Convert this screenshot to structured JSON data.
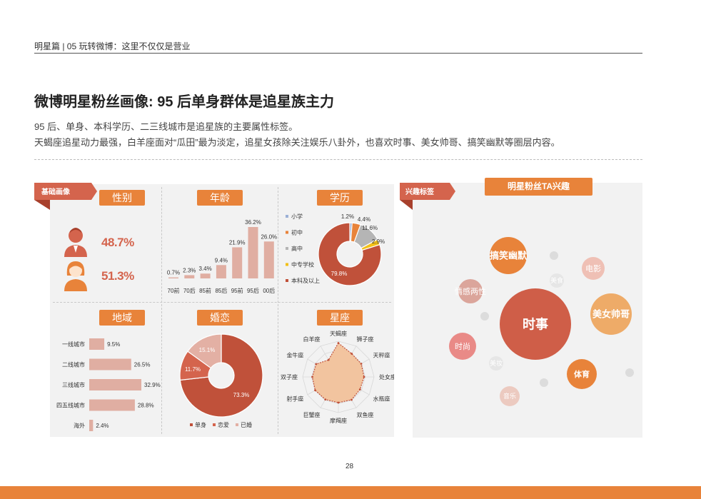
{
  "header": {
    "breadcrumb": "明星篇 | 05  玩转微博：这里不仅仅是营业",
    "title": "微博明星粉丝画像: 95 后单身群体是追星族主力",
    "subtitle_lines": [
      "95 后、单身、本科学历、二三线城市是追星族的主要属性标签。",
      "天蝎座追星动力最强，白羊座面对“瓜田”最为淡定，追星女孩除关注娱乐八卦外，也喜欢时事、美女帅哥、搞笑幽默等圈层内容。"
    ]
  },
  "left_panel": {
    "ribbon": "基础画像",
    "gender": {
      "tag": "性别",
      "male_pct": "48.7%",
      "female_pct": "51.3%"
    },
    "age": {
      "tag": "年龄"
    },
    "education": {
      "tag": "学历"
    },
    "region": {
      "tag": "地域"
    },
    "marital": {
      "tag": "婚恋"
    },
    "zodiac": {
      "tag": "星座"
    }
  },
  "right_panel": {
    "ribbon": "兴趣标签",
    "title": "明星粉丝TA兴趣"
  },
  "page_number": "28",
  "colors": {
    "accent_orange": "#e8833a",
    "ribbon_red": "#d4644d",
    "bar_pink": "#e0aea2",
    "pie_dark": "#c0513a"
  },
  "chart_data": [
    {
      "id": "age",
      "type": "bar",
      "title": "年龄",
      "categories": [
        "70前",
        "70后",
        "85前",
        "85后",
        "95前",
        "95后",
        "00后"
      ],
      "values": [
        0.7,
        2.3,
        3.4,
        9.4,
        21.9,
        36.2,
        26.0
      ],
      "labels": [
        "0.7%",
        "2.3%",
        "3.4%",
        "9.4%",
        "21.9%",
        "36.2%",
        "26.0%"
      ],
      "ylim": [
        0,
        36.2
      ]
    },
    {
      "id": "education",
      "type": "pie",
      "donut": true,
      "title": "学历",
      "legend_position": "left",
      "series": [
        {
          "name": "小学",
          "value": 1.2,
          "label": "1.2%",
          "color": "#9bb0d6"
        },
        {
          "name": "初中",
          "value": 4.4,
          "label": "4.4%",
          "color": "#e8833a"
        },
        {
          "name": "高中",
          "value": 11.6,
          "label": "11.6%",
          "color": "#b5b5b5"
        },
        {
          "name": "中专学校",
          "value": 2.9,
          "label": "2.9%",
          "color": "#f2c018"
        },
        {
          "name": "本科及以上",
          "value": 79.8,
          "label": "79.8%",
          "color": "#c0513a"
        }
      ]
    },
    {
      "id": "region",
      "type": "bar",
      "orientation": "horizontal",
      "title": "地域",
      "categories": [
        "一线城市",
        "二线城市",
        "三线城市",
        "四五线城市",
        "海外"
      ],
      "values": [
        9.5,
        26.5,
        32.9,
        28.8,
        2.4
      ],
      "labels": [
        "9.5%",
        "26.5%",
        "32.9%",
        "28.8%",
        "2.4%"
      ]
    },
    {
      "id": "marital",
      "type": "pie",
      "donut": true,
      "title": "婚恋",
      "legend_position": "bottom",
      "series": [
        {
          "name": "单身",
          "value": 73.3,
          "label": "73.3%",
          "color": "#c0513a"
        },
        {
          "name": "恋爱",
          "value": 11.7,
          "label": "11.7%",
          "color": "#d4644d"
        },
        {
          "name": "已婚",
          "value": 15.1,
          "label": "15.1%",
          "color": "#e3b0a4"
        }
      ]
    },
    {
      "id": "zodiac",
      "type": "radar",
      "title": "星座",
      "axes": [
        "天蝎座",
        "狮子座",
        "天秤座",
        "处女座",
        "水瓶座",
        "双鱼座",
        "摩羯座",
        "巨蟹座",
        "射手座",
        "双子座",
        "金牛座",
        "白羊座"
      ],
      "values": [
        0.95,
        0.75,
        0.74,
        0.72,
        0.7,
        0.74,
        0.72,
        0.73,
        0.75,
        0.73,
        0.72,
        0.55
      ]
    },
    {
      "id": "interests",
      "type": "bubble",
      "title": "明星粉丝TA兴趣",
      "series": [
        {
          "name": "时事",
          "size": 100,
          "color": "#cf5e48"
        },
        {
          "name": "美女帅哥",
          "size": 58,
          "color": "#eeab68"
        },
        {
          "name": "搞笑幽默",
          "size": 52,
          "color": "#e8833a"
        },
        {
          "name": "体育",
          "size": 42,
          "color": "#e8833a"
        },
        {
          "name": "时尚",
          "size": 38,
          "color": "#e98a87"
        },
        {
          "name": "情感两性",
          "size": 34,
          "color": "#dba59b"
        },
        {
          "name": "电影",
          "size": 32,
          "color": "#efc0b5"
        },
        {
          "name": "音乐",
          "size": 28,
          "color": "#eccac0"
        },
        {
          "name": "美食",
          "size": 20,
          "color": "#e6e6e6"
        },
        {
          "name": "美妆",
          "size": 20,
          "color": "#e6e6e6"
        },
        {
          "name": "",
          "size": 12,
          "color": "#dcdcdc"
        },
        {
          "name": "",
          "size": 12,
          "color": "#dcdcdc"
        },
        {
          "name": "",
          "size": 12,
          "color": "#dcdcdc"
        },
        {
          "name": "",
          "size": 12,
          "color": "#dcdcdc"
        }
      ]
    }
  ]
}
